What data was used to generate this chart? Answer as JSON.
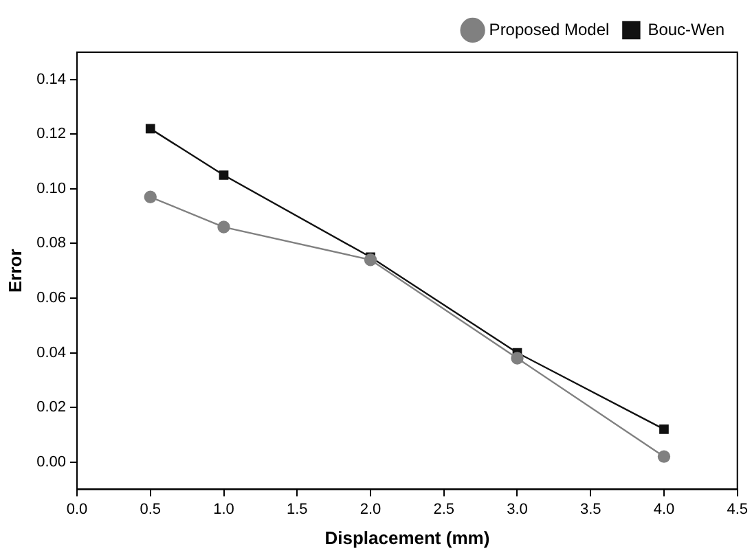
{
  "chart_data": {
    "type": "line",
    "xlabel": "Displacement (mm)",
    "ylabel": "Error",
    "x": [
      0.5,
      1.0,
      2.0,
      3.0,
      4.0
    ],
    "series": [
      {
        "name": "Bouc-Wen",
        "color": "#111111",
        "marker": "square",
        "values": [
          0.122,
          0.105,
          0.075,
          0.04,
          0.012
        ]
      },
      {
        "name": "Proposed Model",
        "color": "#808080",
        "marker": "circle",
        "values": [
          0.097,
          0.086,
          0.074,
          0.038,
          0.002
        ]
      }
    ],
    "xlim": [
      0.0,
      4.5
    ],
    "xticks": [
      {
        "value": 0,
        "label": "0.0"
      },
      0.5,
      {
        "value": 1,
        "label": "1.0"
      },
      1.5,
      {
        "value": 2,
        "label": "2.0"
      },
      2.5,
      {
        "value": 3,
        "label": "3.0"
      },
      3.5,
      {
        "value": 4,
        "label": "4.0"
      },
      4.5
    ],
    "ylim": [
      -0.01,
      0.15
    ],
    "yticks": [
      {
        "value": 0,
        "label": "0.00"
      },
      {
        "value": 0.02,
        "label": "0.02"
      },
      {
        "value": 0.04,
        "label": "0.04"
      },
      {
        "value": 0.06,
        "label": "0.06"
      },
      {
        "value": 0.08,
        "label": "0.08"
      },
      {
        "value": 0.1,
        "label": "0.10"
      },
      {
        "value": 0.12,
        "label": "0.12"
      },
      {
        "value": 0.14,
        "label": "0.14"
      }
    ],
    "legend": "top right",
    "grid": false,
    "line_style": "solid"
  }
}
